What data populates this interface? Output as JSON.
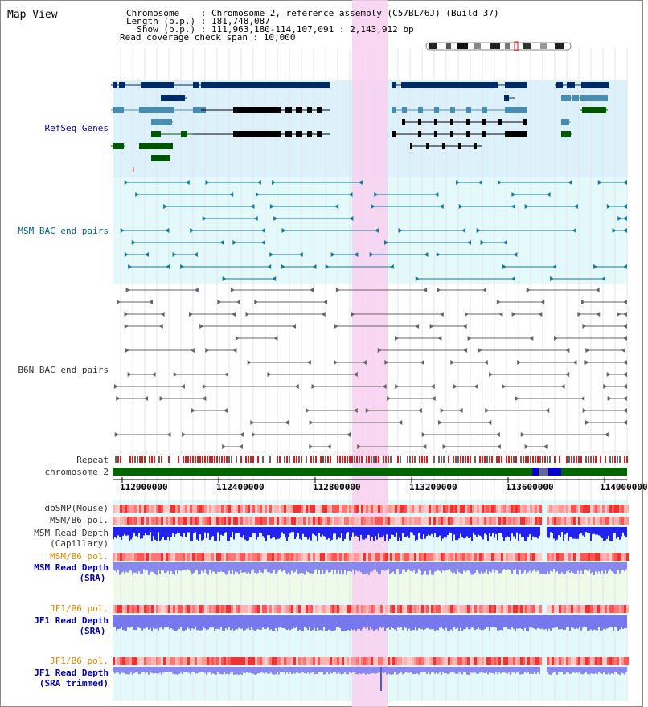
{
  "view_title": "Map View",
  "header": {
    "chromosome_line": "Chromosome    : Chromosome 2, reference assembly (C57BL/6J) (Build 37)",
    "length_line": "Length (b.p.) : 181,748,087",
    "show_line": "  Show (b.p.) : 111,963,180-114,107,091 : 2,143,912 bp",
    "coverage_line": "Read coverage check span : 10,000"
  },
  "tracks": {
    "refseq": "RefSeq Genes",
    "msm_bac": "MSM BAC end pairs",
    "b6n_bac": "B6N BAC end pairs",
    "repeat": "Repeat",
    "chromosome": "chromosome 2",
    "dbsnp": "dbSNP(Mouse)",
    "msm_b6_pol_1": "MSM/B6 pol.",
    "msm_read_depth_cap_1": "MSM Read Depth",
    "msm_read_depth_cap_2": "(Capillary)",
    "msm_b6_pol_2": "MSM/B6 pol.",
    "msm_read_depth_sra_1": "MSM Read Depth",
    "msm_read_depth_sra_2": "(SRA)",
    "jf1_b6_pol_1": "JF1/B6 pol.",
    "jf1_read_depth_sra_1": "JF1 Read Depth",
    "jf1_read_depth_sra_2": "(SRA)",
    "jf1_b6_pol_2": "JF1/B6 pol.",
    "jf1_read_depth_trim_1": "JF1 Read Depth",
    "jf1_read_depth_trim_2": "(SRA trimmed)"
  },
  "axis": {
    "ticks": [
      "112000000",
      "112400000",
      "112800000",
      "113200000",
      "113600000",
      "114000000"
    ]
  },
  "colors": {
    "label_black": "#333333",
    "label_blue": "#0000aa",
    "label_orange": "#dd8800",
    "label_teal": "#006688",
    "highlight": "#f8d0f0",
    "refseq_bg": "#ddf1fb",
    "msm_bg": "#e4fafa",
    "chromosome_green": "#006600"
  }
}
